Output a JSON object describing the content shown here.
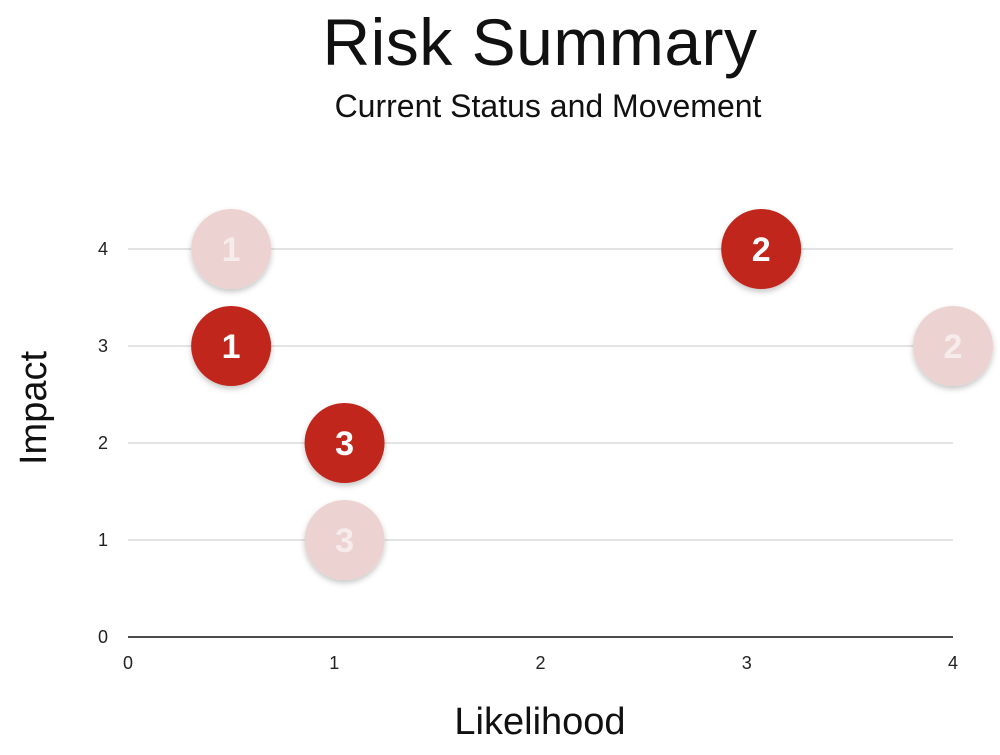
{
  "chart_data": {
    "type": "scatter",
    "title": "Risk Summary",
    "subtitle": "Current Status and Movement",
    "xlabel": "Likelihood",
    "ylabel": "Impact",
    "xlim": [
      0,
      4
    ],
    "ylim": [
      0,
      4
    ],
    "x_ticks": [
      "0",
      "1",
      "2",
      "3",
      "4"
    ],
    "y_ticks": [
      "0",
      "1",
      "2",
      "3",
      "4"
    ],
    "grid": "horizontal",
    "legend": "none",
    "series": [
      {
        "points": [
          {
            "label": "1",
            "x": 0.5,
            "y": 4
          },
          {
            "label": "2",
            "x": 4.0,
            "y": 3
          },
          {
            "label": "3",
            "x": 1.05,
            "y": 1
          }
        ],
        "color": "#ecd2d0",
        "label_color": "#f7ecec"
      },
      {
        "points": [
          {
            "label": "1",
            "x": 0.5,
            "y": 3
          },
          {
            "label": "2",
            "x": 3.07,
            "y": 4
          },
          {
            "label": "3",
            "x": 1.05,
            "y": 2
          }
        ],
        "color": "#c0271f",
        "label_color": "#ffffff"
      }
    ]
  }
}
